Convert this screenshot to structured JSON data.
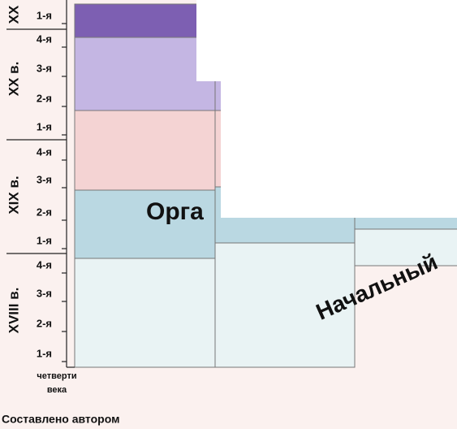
{
  "axis": {
    "centuries": [
      "XX",
      "XX в.",
      "XIX в.",
      "XVIII в."
    ],
    "quarters": [
      "1-я",
      "4-я",
      "3-я",
      "2-я",
      "1-я",
      "4-я",
      "3-я",
      "2-я",
      "1-я",
      "4-я",
      "3-я",
      "2-я",
      "1-я"
    ],
    "caption": [
      "четверти",
      "века"
    ]
  },
  "stages": [
    "Орга",
    "Начальный"
  ],
  "footer": "Составлено автором"
}
